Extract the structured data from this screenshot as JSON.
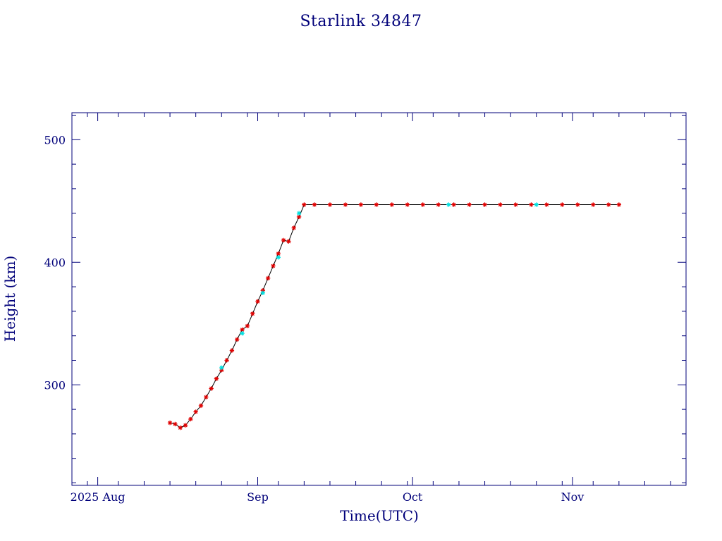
{
  "chart_data": {
    "type": "scatter",
    "title": "Starlink 34847",
    "xlabel": "Time(UTC)",
    "ylabel": "Height (km)",
    "x_axis": {
      "type": "date",
      "range": [
        "2025-07-27",
        "2025-11-23"
      ],
      "tick_labels": [
        {
          "date": "2025-08-01",
          "label": "2025 Aug"
        },
        {
          "date": "2025-09-01",
          "label": "Sep"
        },
        {
          "date": "2025-10-01",
          "label": "Oct"
        },
        {
          "date": "2025-11-01",
          "label": "Nov"
        }
      ]
    },
    "y_axis": {
      "range": [
        218,
        522
      ],
      "tick_labels": [
        300,
        400,
        500
      ]
    },
    "grid": false,
    "colors": {
      "axes": "#00007a",
      "text": "#00007a",
      "points_primary": "#e00000",
      "points_secondary": "#00e0e0",
      "line": "#000000"
    },
    "series": [
      {
        "marker": "asterisk",
        "color": "#e00000",
        "points": [
          [
            "2025-08-15",
            269
          ],
          [
            "2025-08-16",
            268
          ],
          [
            "2025-08-17",
            265
          ],
          [
            "2025-08-18",
            267
          ],
          [
            "2025-08-19",
            272
          ],
          [
            "2025-08-20",
            278
          ],
          [
            "2025-08-21",
            283
          ],
          [
            "2025-08-22",
            290
          ],
          [
            "2025-08-23",
            297
          ],
          [
            "2025-08-24",
            305
          ],
          [
            "2025-08-25",
            312
          ],
          [
            "2025-08-26",
            320
          ],
          [
            "2025-08-27",
            328
          ],
          [
            "2025-08-28",
            337
          ],
          [
            "2025-08-29",
            345
          ],
          [
            "2025-08-30",
            348
          ],
          [
            "2025-08-31",
            358
          ],
          [
            "2025-09-01",
            368
          ],
          [
            "2025-09-02",
            377
          ],
          [
            "2025-09-03",
            387
          ],
          [
            "2025-09-04",
            397
          ],
          [
            "2025-09-05",
            407
          ],
          [
            "2025-09-06",
            418
          ],
          [
            "2025-09-07",
            417
          ],
          [
            "2025-09-08",
            428
          ],
          [
            "2025-09-09",
            437
          ],
          [
            "2025-09-10",
            447
          ],
          [
            "2025-09-12",
            447
          ],
          [
            "2025-09-15",
            447
          ],
          [
            "2025-09-18",
            447
          ],
          [
            "2025-09-21",
            447
          ],
          [
            "2025-09-24",
            447
          ],
          [
            "2025-09-27",
            447
          ],
          [
            "2025-09-30",
            447
          ],
          [
            "2025-10-03",
            447
          ],
          [
            "2025-10-06",
            447
          ],
          [
            "2025-10-09",
            447
          ],
          [
            "2025-10-12",
            447
          ],
          [
            "2025-10-15",
            447
          ],
          [
            "2025-10-18",
            447
          ],
          [
            "2025-10-21",
            447
          ],
          [
            "2025-10-24",
            447
          ],
          [
            "2025-10-27",
            447
          ],
          [
            "2025-10-30",
            447
          ],
          [
            "2025-11-02",
            447
          ],
          [
            "2025-11-05",
            447
          ],
          [
            "2025-11-08",
            447
          ],
          [
            "2025-11-10",
            447
          ]
        ]
      },
      {
        "marker": "asterisk",
        "color": "#00e0e0",
        "points": [
          [
            "2025-08-25",
            314
          ],
          [
            "2025-08-29",
            342
          ],
          [
            "2025-09-02",
            375
          ],
          [
            "2025-09-05",
            404
          ],
          [
            "2025-09-09",
            440
          ],
          [
            "2025-10-08",
            447
          ],
          [
            "2025-10-25",
            447
          ]
        ]
      }
    ]
  }
}
